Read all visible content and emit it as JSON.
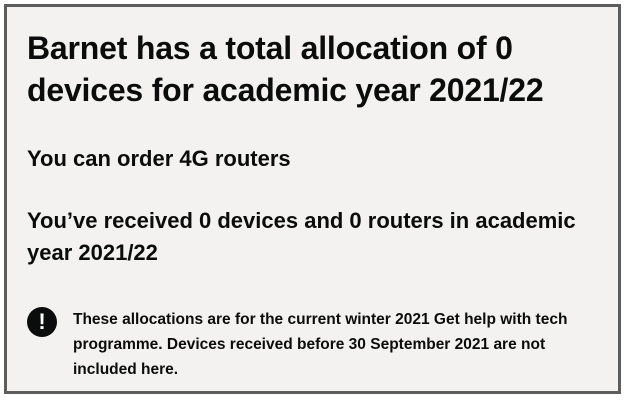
{
  "allocation": {
    "title": "Barnet has a total allocation of 0 devices for academic year 2021/22",
    "routers_note": "You can order 4G routers",
    "received_note": "You’ve received 0 devices and 0 routers in academic year 2021/22"
  },
  "warning": {
    "icon": "exclamation-icon",
    "icon_glyph": "!",
    "text": "These allocations are for the current winter 2021 Get help with tech programme. Devices received before 30 September 2021 are not included here."
  }
}
